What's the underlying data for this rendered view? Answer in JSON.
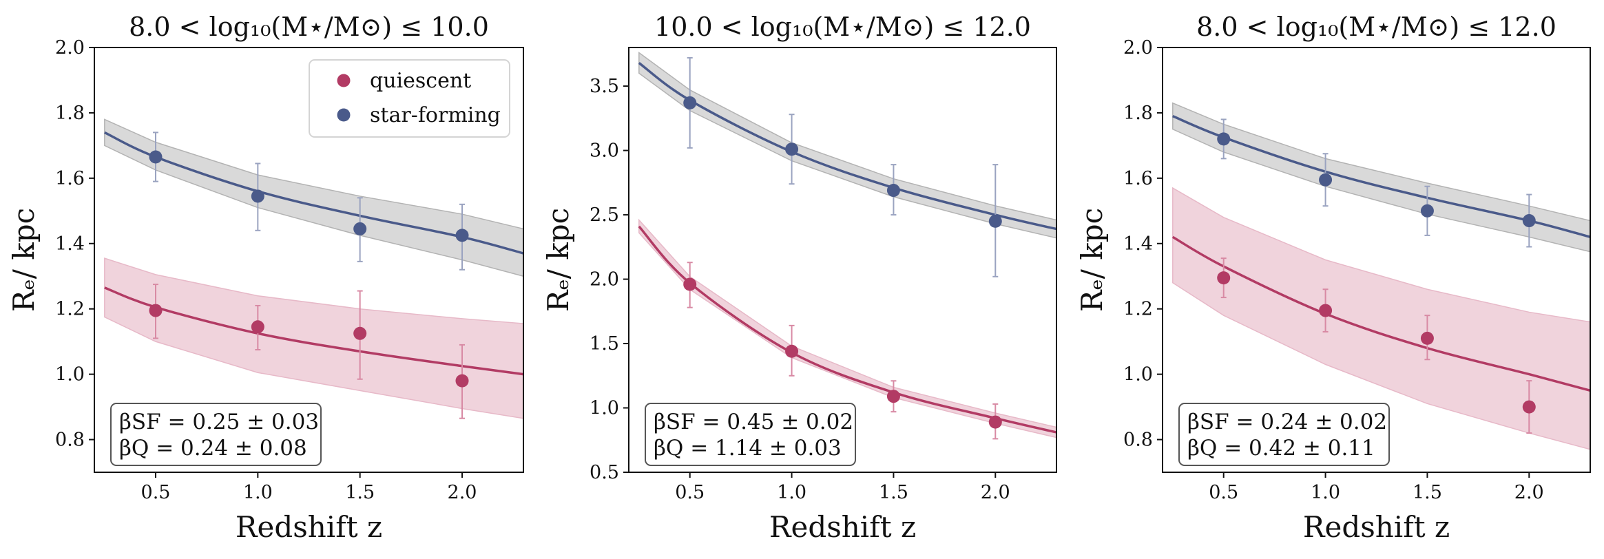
{
  "colors": {
    "quiescent": "#b23b64",
    "quiescent_band": "#f0d3dc",
    "quiescent_band_edge": "#e7b9c8",
    "star_forming": "#4a5a8a",
    "star_forming_band": "#d9d9d9",
    "star_forming_band_edge": "#b3b3b3",
    "axis": "#111111"
  },
  "legend": {
    "quiescent": "quiescent",
    "star_forming": "star-forming"
  },
  "chart_data": [
    {
      "type": "scatter",
      "title": "8.0 < log₁₀(M⋆/M⊙) ≤ 10.0",
      "xlabel": "Redshift z",
      "ylabel": "Rₑ/ kpc",
      "xlim": [
        0.2,
        2.3
      ],
      "ylim": [
        0.7,
        2.0
      ],
      "xticks": [
        "0.5",
        "1.0",
        "1.5",
        "2.0"
      ],
      "yticks": [
        "0.8",
        "1.0",
        "1.2",
        "1.4",
        "1.6",
        "1.8",
        "2.0"
      ],
      "legend_position": "top-right",
      "annotation": [
        "βSF = 0.25 ± 0.03",
        "βQ = 0.24 ± 0.08"
      ],
      "series": [
        {
          "name": "star-forming",
          "x": [
            0.5,
            1.0,
            1.5,
            2.0
          ],
          "y": [
            1.665,
            1.545,
            1.445,
            1.425
          ],
          "err_low": [
            1.59,
            1.44,
            1.345,
            1.32
          ],
          "err_high": [
            1.74,
            1.645,
            1.54,
            1.52
          ],
          "fit": [
            [
              0.25,
              1.74
            ],
            [
              0.5,
              1.665
            ],
            [
              1.0,
              1.56
            ],
            [
              1.5,
              1.485
            ],
            [
              2.0,
              1.42
            ],
            [
              2.3,
              1.37
            ]
          ],
          "band_low": [
            [
              0.25,
              1.7
            ],
            [
              0.5,
              1.625
            ],
            [
              1.0,
              1.51
            ],
            [
              1.5,
              1.425
            ],
            [
              2.0,
              1.35
            ],
            [
              2.3,
              1.3
            ]
          ],
          "band_high": [
            [
              0.25,
              1.78
            ],
            [
              0.5,
              1.71
            ],
            [
              1.0,
              1.61
            ],
            [
              1.5,
              1.545
            ],
            [
              2.0,
              1.49
            ],
            [
              2.3,
              1.445
            ]
          ]
        },
        {
          "name": "quiescent",
          "x": [
            0.5,
            1.0,
            1.5,
            2.0
          ],
          "y": [
            1.195,
            1.145,
            1.125,
            0.98
          ],
          "err_low": [
            1.11,
            1.075,
            0.985,
            0.865
          ],
          "err_high": [
            1.275,
            1.21,
            1.255,
            1.09
          ],
          "fit": [
            [
              0.25,
              1.265
            ],
            [
              0.5,
              1.205
            ],
            [
              1.0,
              1.125
            ],
            [
              1.5,
              1.07
            ],
            [
              2.0,
              1.025
            ],
            [
              2.3,
              1.0
            ]
          ],
          "band_low": [
            [
              0.25,
              1.175
            ],
            [
              0.5,
              1.1
            ],
            [
              1.0,
              1.005
            ],
            [
              1.5,
              0.95
            ],
            [
              2.0,
              0.895
            ],
            [
              2.3,
              0.865
            ]
          ],
          "band_high": [
            [
              0.25,
              1.355
            ],
            [
              0.5,
              1.305
            ],
            [
              1.0,
              1.24
            ],
            [
              1.5,
              1.2
            ],
            [
              2.0,
              1.17
            ],
            [
              2.3,
              1.155
            ]
          ]
        }
      ]
    },
    {
      "type": "scatter",
      "title": "10.0 < log₁₀(M⋆/M⊙) ≤ 12.0",
      "xlabel": "Redshift z",
      "ylabel": "Rₑ/ kpc",
      "xlim": [
        0.2,
        2.3
      ],
      "ylim": [
        0.5,
        3.8
      ],
      "xticks": [
        "0.5",
        "1.0",
        "1.5",
        "2.0"
      ],
      "yticks": [
        "0.5",
        "1.0",
        "1.5",
        "2.0",
        "2.5",
        "3.0",
        "3.5"
      ],
      "annotation": [
        "βSF = 0.45 ± 0.02",
        "βQ = 1.14 ± 0.03"
      ],
      "series": [
        {
          "name": "star-forming",
          "x": [
            0.5,
            1.0,
            1.5,
            2.0
          ],
          "y": [
            3.37,
            3.01,
            2.69,
            2.45
          ],
          "err_low": [
            3.02,
            2.74,
            2.5,
            2.02
          ],
          "err_high": [
            3.72,
            3.28,
            2.89,
            2.89
          ],
          "fit": [
            [
              0.25,
              3.68
            ],
            [
              0.5,
              3.39
            ],
            [
              1.0,
              2.99
            ],
            [
              1.5,
              2.71
            ],
            [
              2.0,
              2.5
            ],
            [
              2.3,
              2.39
            ]
          ],
          "band_low": [
            [
              0.25,
              3.6
            ],
            [
              0.5,
              3.31
            ],
            [
              1.0,
              2.92
            ],
            [
              1.5,
              2.64
            ],
            [
              2.0,
              2.43
            ],
            [
              2.3,
              2.32
            ]
          ],
          "band_high": [
            [
              0.25,
              3.76
            ],
            [
              0.5,
              3.47
            ],
            [
              1.0,
              3.06
            ],
            [
              1.5,
              2.78
            ],
            [
              2.0,
              2.57
            ],
            [
              2.3,
              2.46
            ]
          ]
        },
        {
          "name": "quiescent",
          "x": [
            0.5,
            1.0,
            1.5,
            2.0
          ],
          "y": [
            1.96,
            1.44,
            1.09,
            0.89
          ],
          "err_low": [
            1.78,
            1.25,
            0.97,
            0.76
          ],
          "err_high": [
            2.13,
            1.64,
            1.21,
            1.03
          ],
          "fit": [
            [
              0.25,
              2.41
            ],
            [
              0.5,
              1.97
            ],
            [
              1.0,
              1.43
            ],
            [
              1.5,
              1.12
            ],
            [
              2.0,
              0.92
            ],
            [
              2.3,
              0.81
            ]
          ],
          "band_low": [
            [
              0.25,
              2.36
            ],
            [
              0.5,
              1.92
            ],
            [
              1.0,
              1.39
            ],
            [
              1.5,
              1.08
            ],
            [
              2.0,
              0.88
            ],
            [
              2.3,
              0.77
            ]
          ],
          "band_high": [
            [
              0.25,
              2.46
            ],
            [
              0.5,
              2.02
            ],
            [
              1.0,
              1.48
            ],
            [
              1.5,
              1.16
            ],
            [
              2.0,
              0.96
            ],
            [
              2.3,
              0.85
            ]
          ]
        }
      ]
    },
    {
      "type": "scatter",
      "title": "8.0 < log₁₀(M⋆/M⊙) ≤ 12.0",
      "xlabel": "Redshift z",
      "ylabel": "Rₑ/ kpc",
      "xlim": [
        0.2,
        2.3
      ],
      "ylim": [
        0.7,
        2.0
      ],
      "xticks": [
        "0.5",
        "1.0",
        "1.5",
        "2.0"
      ],
      "yticks": [
        "0.8",
        "1.0",
        "1.2",
        "1.4",
        "1.6",
        "1.8",
        "2.0"
      ],
      "annotation": [
        "βSF = 0.24 ± 0.02",
        "βQ = 0.42 ± 0.11"
      ],
      "series": [
        {
          "name": "star-forming",
          "x": [
            0.5,
            1.0,
            1.5,
            2.0
          ],
          "y": [
            1.72,
            1.595,
            1.5,
            1.47
          ],
          "err_low": [
            1.66,
            1.515,
            1.425,
            1.39
          ],
          "err_high": [
            1.78,
            1.675,
            1.575,
            1.55
          ],
          "fit": [
            [
              0.25,
              1.79
            ],
            [
              0.5,
              1.725
            ],
            [
              1.0,
              1.62
            ],
            [
              1.5,
              1.54
            ],
            [
              2.0,
              1.47
            ],
            [
              2.3,
              1.42
            ]
          ],
          "band_low": [
            [
              0.25,
              1.75
            ],
            [
              0.5,
              1.68
            ],
            [
              1.0,
              1.575
            ],
            [
              1.5,
              1.49
            ],
            [
              2.0,
              1.42
            ],
            [
              2.3,
              1.375
            ]
          ],
          "band_high": [
            [
              0.25,
              1.83
            ],
            [
              0.5,
              1.765
            ],
            [
              1.0,
              1.66
            ],
            [
              1.5,
              1.585
            ],
            [
              2.0,
              1.515
            ],
            [
              2.3,
              1.47
            ]
          ]
        },
        {
          "name": "quiescent",
          "x": [
            0.5,
            1.0,
            1.5,
            2.0
          ],
          "y": [
            1.295,
            1.195,
            1.11,
            0.9
          ],
          "err_low": [
            1.235,
            1.13,
            1.045,
            0.82
          ],
          "err_high": [
            1.355,
            1.26,
            1.18,
            0.98
          ],
          "fit": [
            [
              0.25,
              1.42
            ],
            [
              0.5,
              1.33
            ],
            [
              1.0,
              1.185
            ],
            [
              1.5,
              1.08
            ],
            [
              2.0,
              1.0
            ],
            [
              2.3,
              0.95
            ]
          ],
          "band_low": [
            [
              0.25,
              1.28
            ],
            [
              0.5,
              1.18
            ],
            [
              1.0,
              1.03
            ],
            [
              1.5,
              0.91
            ],
            [
              2.0,
              0.82
            ],
            [
              2.3,
              0.77
            ]
          ],
          "band_high": [
            [
              0.25,
              1.57
            ],
            [
              0.5,
              1.48
            ],
            [
              1.0,
              1.35
            ],
            [
              1.5,
              1.26
            ],
            [
              2.0,
              1.19
            ],
            [
              2.3,
              1.16
            ]
          ]
        }
      ]
    }
  ]
}
